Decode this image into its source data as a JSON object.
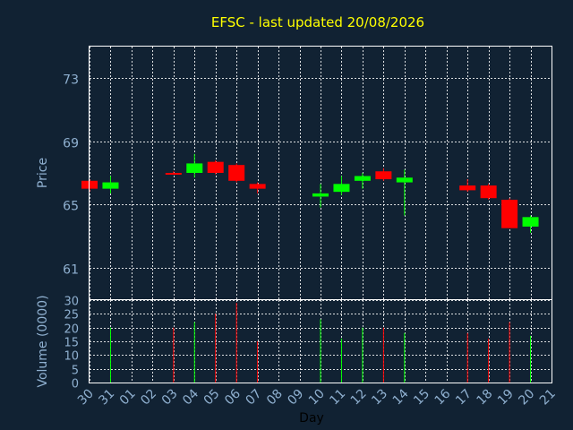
{
  "chart_data": {
    "title": "EFSC - last updated 20/08/2026",
    "colors": {
      "background": "#112233",
      "up": "#00ff00",
      "down": "#ff0000",
      "title": "#ffff00",
      "axis_text": "#8fb0d0",
      "grid": "#ffffff"
    },
    "price": {
      "type": "candlestick",
      "ylabel": "Price",
      "ylim": [
        59,
        75
      ],
      "yticks": [
        "61",
        "65",
        "69",
        "73"
      ],
      "grid": true
    },
    "volume": {
      "type": "bar",
      "ylabel": "Volume (0000)",
      "ylim": [
        0,
        30
      ],
      "yticks": [
        "0",
        "5",
        "10",
        "15",
        "20",
        "25",
        "30"
      ],
      "grid": true
    },
    "xlabel": "Day",
    "x_ticks": [
      "30",
      "31",
      "01",
      "02",
      "03",
      "04",
      "05",
      "06",
      "07",
      "08",
      "09",
      "10",
      "11",
      "12",
      "13",
      "14",
      "15",
      "16",
      "17",
      "18",
      "19",
      "20",
      "21"
    ],
    "candles": [
      {
        "day": "30",
        "open": 66.5,
        "close": 66.0,
        "high": 66.6,
        "low": 65.8,
        "volume": 0
      },
      {
        "day": "31",
        "open": 66.0,
        "close": 66.4,
        "high": 66.8,
        "low": 65.7,
        "volume": 20
      },
      {
        "day": "03",
        "open": 67.0,
        "close": 66.9,
        "high": 67.1,
        "low": 66.9,
        "volume": 20
      },
      {
        "day": "04",
        "open": 67.0,
        "close": 67.6,
        "high": 68.2,
        "low": 66.7,
        "volume": 22
      },
      {
        "day": "05",
        "open": 67.7,
        "close": 67.0,
        "high": 67.8,
        "low": 66.9,
        "volume": 25
      },
      {
        "day": "06",
        "open": 67.5,
        "close": 66.5,
        "high": 67.6,
        "low": 66.4,
        "volume": 29
      },
      {
        "day": "07",
        "open": 66.3,
        "close": 66.0,
        "high": 66.4,
        "low": 65.7,
        "volume": 15
      },
      {
        "day": "10",
        "open": 65.5,
        "close": 65.7,
        "high": 66.3,
        "low": 64.8,
        "volume": 23
      },
      {
        "day": "11",
        "open": 65.8,
        "close": 66.3,
        "high": 66.8,
        "low": 65.6,
        "volume": 16
      },
      {
        "day": "12",
        "open": 66.5,
        "close": 66.8,
        "high": 67.0,
        "low": 66.0,
        "volume": 20
      },
      {
        "day": "13",
        "open": 67.1,
        "close": 66.6,
        "high": 67.3,
        "low": 66.5,
        "volume": 20
      },
      {
        "day": "14",
        "open": 66.4,
        "close": 66.7,
        "high": 67.2,
        "low": 64.3,
        "volume": 18
      },
      {
        "day": "17",
        "open": 66.2,
        "close": 65.9,
        "high": 66.6,
        "low": 65.8,
        "volume": 18
      },
      {
        "day": "18",
        "open": 66.2,
        "close": 65.4,
        "high": 66.3,
        "low": 65.3,
        "volume": 16
      },
      {
        "day": "19",
        "open": 65.3,
        "close": 63.5,
        "high": 65.4,
        "low": 63.5,
        "volume": 22
      },
      {
        "day": "20",
        "open": 63.6,
        "close": 64.2,
        "high": 64.3,
        "low": 63.2,
        "volume": 17
      }
    ]
  }
}
